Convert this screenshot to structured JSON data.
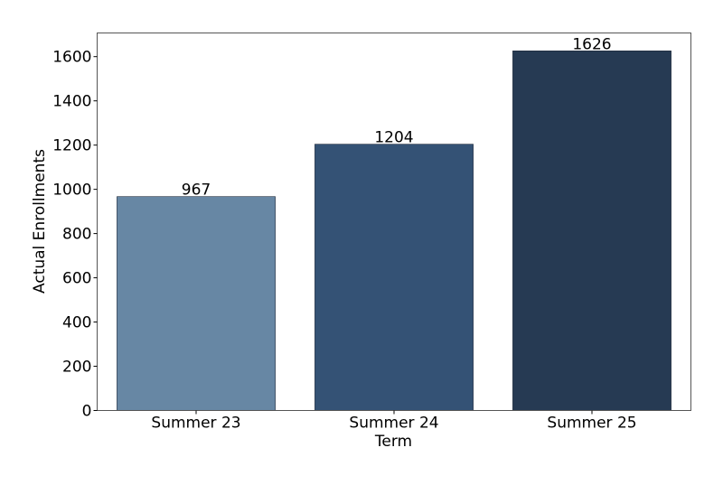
{
  "chart_data": {
    "type": "bar",
    "title": "",
    "xlabel": "Term",
    "ylabel": "Actual Enrollments",
    "categories": [
      "Summer 23",
      "Summer 24",
      "Summer 25"
    ],
    "values": [
      967,
      1204,
      1626
    ],
    "data_labels": [
      "967",
      "1204",
      "1626"
    ],
    "colors": [
      "#6787a4",
      "#345275",
      "#263a53"
    ],
    "ylim": [
      0,
      1707
    ],
    "yticks": [
      0,
      200,
      400,
      600,
      800,
      1000,
      1200,
      1400,
      1600
    ],
    "ytick_labels": [
      "0",
      "200",
      "400",
      "600",
      "800",
      "1000",
      "1200",
      "1400",
      "1600"
    ],
    "grid": false,
    "legend": "none"
  }
}
